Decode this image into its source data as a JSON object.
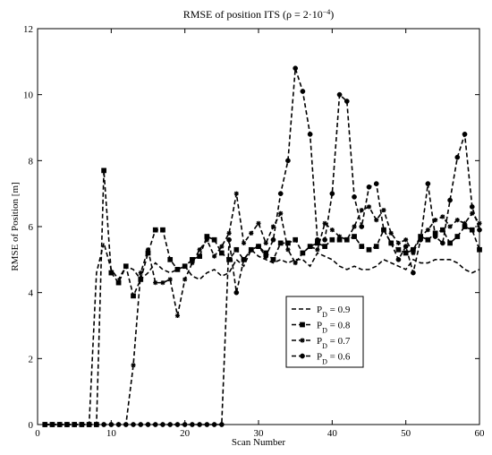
{
  "chart_data": {
    "type": "line",
    "title": "RMSE of position ITS (ρ = 2·10",
    "title_exp": "−4",
    "title_close": ")",
    "xlabel": "Scan Number",
    "ylabel": "RMSE of Position [m]",
    "xlim": [
      0,
      60
    ],
    "ylim": [
      0,
      12
    ],
    "xticks": [
      0,
      10,
      20,
      30,
      40,
      50,
      60
    ],
    "yticks": [
      0,
      2,
      4,
      6,
      8,
      10,
      12
    ],
    "grid": false,
    "legend_position": "center-right",
    "series": [
      {
        "name": "P",
        "sub": "D",
        "suffix": " = 0.9",
        "marker": "none",
        "x": [
          1,
          2,
          3,
          4,
          5,
          6,
          7,
          8,
          9,
          10,
          11,
          12,
          13,
          14,
          15,
          16,
          17,
          18,
          19,
          20,
          21,
          22,
          23,
          24,
          25,
          26,
          27,
          28,
          29,
          30,
          31,
          32,
          33,
          34,
          35,
          36,
          37,
          38,
          39,
          40,
          41,
          42,
          43,
          44,
          45,
          46,
          47,
          48,
          49,
          50,
          51,
          52,
          53,
          54,
          55,
          56,
          57,
          58,
          59,
          60
        ],
        "values": [
          0,
          0,
          0,
          0,
          0,
          0,
          0,
          4.6,
          5.5,
          4.7,
          4.4,
          4.8,
          4.7,
          4.4,
          4.6,
          4.9,
          4.7,
          4.6,
          4.7,
          4.8,
          4.5,
          4.4,
          4.6,
          4.7,
          4.5,
          4.6,
          5.0,
          4.8,
          5.3,
          5.1,
          5.0,
          4.9,
          5.0,
          4.9,
          5.0,
          5.0,
          4.8,
          5.2,
          5.1,
          5.0,
          4.8,
          4.7,
          4.8,
          4.7,
          4.7,
          4.8,
          5.0,
          4.9,
          4.8,
          4.7,
          5.0,
          4.9,
          4.9,
          5.0,
          5.0,
          5.0,
          4.9,
          4.7,
          4.6,
          4.7
        ]
      },
      {
        "name": "P",
        "sub": "D",
        "suffix": " = 0.8",
        "marker": "square",
        "x": [
          1,
          2,
          3,
          4,
          5,
          6,
          7,
          8,
          9,
          10,
          11,
          12,
          13,
          14,
          15,
          16,
          17,
          18,
          19,
          20,
          21,
          22,
          23,
          24,
          25,
          26,
          27,
          28,
          29,
          30,
          31,
          32,
          33,
          34,
          35,
          36,
          37,
          38,
          39,
          40,
          41,
          42,
          43,
          44,
          45,
          46,
          47,
          48,
          49,
          50,
          51,
          52,
          53,
          54,
          55,
          56,
          57,
          58,
          59,
          60
        ],
        "values": [
          0,
          0,
          0,
          0,
          0,
          0,
          0,
          0,
          7.7,
          4.6,
          4.3,
          4.8,
          3.9,
          4.4,
          5.2,
          5.9,
          5.9,
          5.0,
          4.7,
          4.8,
          5.0,
          5.1,
          5.7,
          5.6,
          5.2,
          5.0,
          5.3,
          5.0,
          5.3,
          5.4,
          5.2,
          5.0,
          5.5,
          5.5,
          5.6,
          5.2,
          5.4,
          5.5,
          5.4,
          5.6,
          5.6,
          5.6,
          5.7,
          5.4,
          5.3,
          5.4,
          5.9,
          5.5,
          5.3,
          5.2,
          5.3,
          5.7,
          5.6,
          5.8,
          5.9,
          5.5,
          5.7,
          6.0,
          5.9,
          5.3
        ]
      },
      {
        "name": "P",
        "sub": "D",
        "suffix": " = 0.7",
        "marker": "star",
        "x": [
          1,
          2,
          3,
          4,
          5,
          6,
          7,
          8,
          9,
          10,
          11,
          12,
          13,
          14,
          15,
          16,
          17,
          18,
          19,
          20,
          21,
          22,
          23,
          24,
          25,
          26,
          27,
          28,
          29,
          30,
          31,
          32,
          33,
          34,
          35,
          36,
          37,
          38,
          39,
          40,
          41,
          42,
          43,
          44,
          45,
          46,
          47,
          48,
          49,
          50,
          51,
          52,
          53,
          54,
          55,
          56,
          57,
          58,
          59,
          60
        ],
        "values": [
          0,
          0,
          0,
          0,
          0,
          0,
          0,
          0,
          0,
          0,
          0,
          0,
          1.8,
          4.6,
          5.3,
          4.3,
          4.3,
          4.4,
          3.3,
          4.4,
          4.9,
          5.3,
          5.6,
          5.1,
          5.4,
          5.8,
          7.0,
          5.5,
          5.8,
          6.1,
          5.5,
          6.0,
          6.4,
          5.3,
          4.9,
          5.2,
          5.4,
          5.3,
          6.1,
          5.9,
          5.7,
          5.6,
          6.0,
          6.5,
          6.6,
          6.2,
          6.5,
          5.8,
          5.5,
          5.6,
          5.2,
          5.7,
          5.9,
          6.2,
          6.3,
          6.0,
          6.2,
          6.1,
          6.4,
          6.1
        ]
      },
      {
        "name": "P",
        "sub": "D",
        "suffix": " = 0.6",
        "marker": "circle",
        "x": [
          1,
          2,
          3,
          4,
          5,
          6,
          7,
          8,
          9,
          10,
          11,
          12,
          13,
          14,
          15,
          16,
          17,
          18,
          19,
          20,
          21,
          22,
          23,
          24,
          25,
          26,
          27,
          28,
          29,
          30,
          31,
          32,
          33,
          34,
          35,
          36,
          37,
          38,
          39,
          40,
          41,
          42,
          43,
          44,
          45,
          46,
          47,
          48,
          49,
          50,
          51,
          52,
          53,
          54,
          55,
          56,
          57,
          58,
          59,
          60
        ],
        "values": [
          0,
          0,
          0,
          0,
          0,
          0,
          0,
          0,
          0,
          0,
          0,
          0,
          0,
          0,
          0,
          0,
          0,
          0,
          0,
          0,
          0,
          0,
          0,
          0,
          0,
          5.6,
          4.0,
          5.0,
          5.3,
          5.4,
          5.1,
          5.6,
          7.0,
          8.0,
          10.8,
          10.1,
          8.8,
          5.6,
          5.6,
          7.0,
          10.0,
          9.8,
          6.9,
          6.0,
          7.2,
          7.3,
          5.9,
          5.5,
          5.0,
          5.4,
          4.6,
          5.6,
          7.3,
          5.7,
          5.5,
          6.8,
          8.1,
          8.8,
          6.6,
          5.9
        ]
      }
    ]
  }
}
